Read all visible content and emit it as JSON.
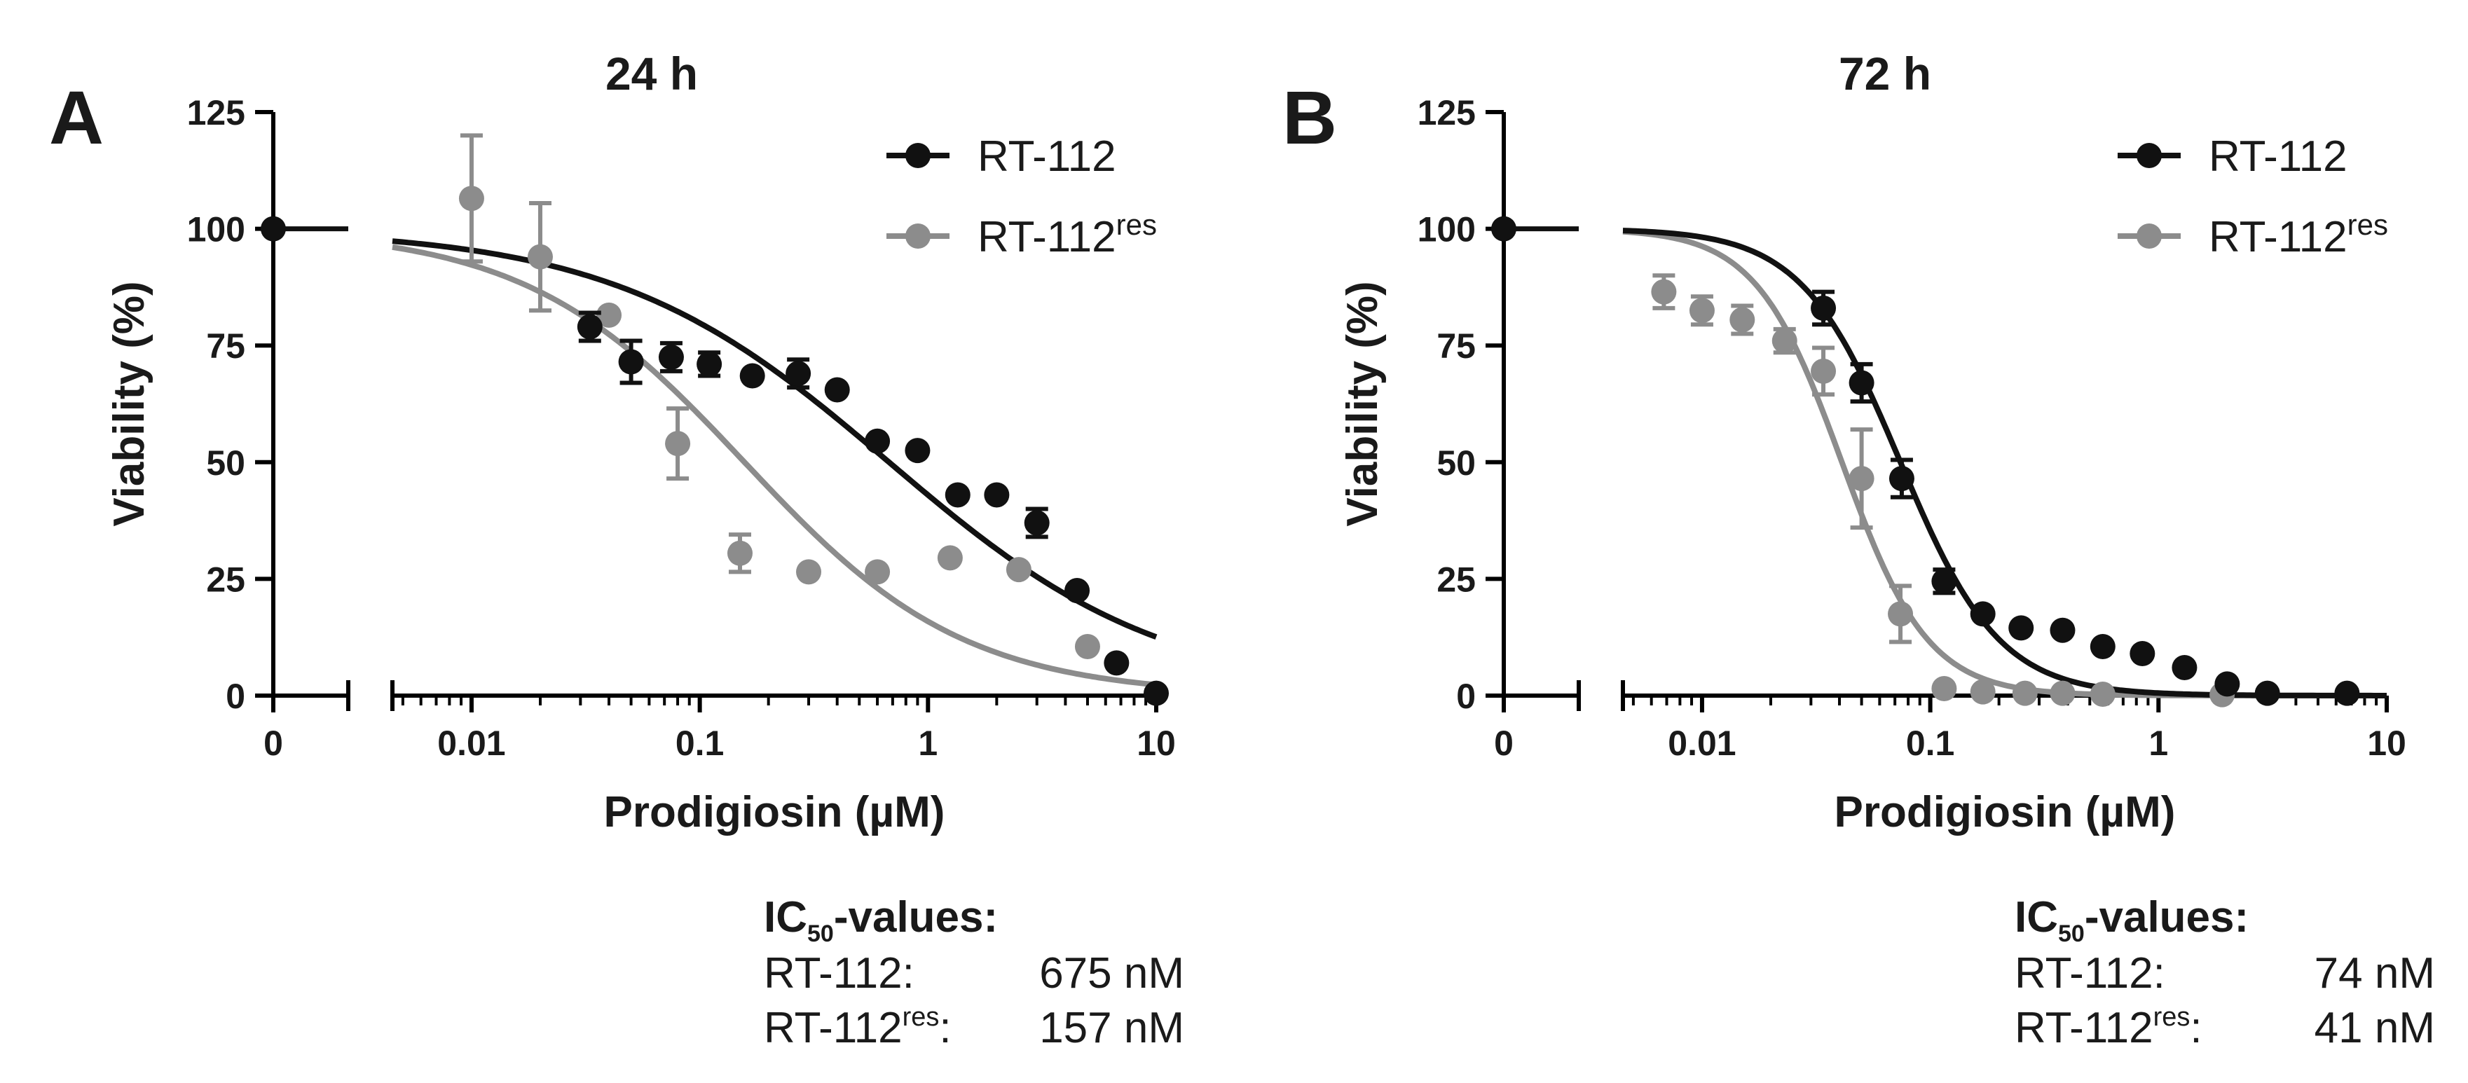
{
  "figure": {
    "x_axis_label": "Prodigiosin (µM)",
    "y_axis_label": "Viability (%)"
  },
  "chart_data": [
    {
      "type": "scatter",
      "panel_letter": "A",
      "title": "24 h",
      "xlabel": "Prodigiosin (µM)",
      "ylabel": "Viability (%)",
      "xscale": "log",
      "xlim": [
        0.0045,
        10
      ],
      "ylim": [
        0,
        125
      ],
      "x_ticks": [
        "0",
        "0.01",
        "0.1",
        "1",
        "10"
      ],
      "y_ticks": [
        "0",
        "25",
        "50",
        "75",
        "100",
        "125"
      ],
      "zero_dose": {
        "x_label": "0",
        "viability": 100
      },
      "legend": {
        "position": "top-right",
        "entries": [
          {
            "name": "RT-112",
            "sup": "",
            "color": "#111111"
          },
          {
            "name": "RT-112",
            "sup": "res",
            "color": "#8c8c8c"
          }
        ]
      },
      "series": [
        {
          "name": "RT-112",
          "color": "#111111",
          "ic50_uM": 0.675,
          "hill": 0.72,
          "points": [
            [
              0.033,
              79,
              3
            ],
            [
              0.05,
              71.5,
              4.5
            ],
            [
              0.075,
              72.5,
              3
            ],
            [
              0.11,
              71,
              2.5
            ],
            [
              0.17,
              68.5,
              0
            ],
            [
              0.27,
              69,
              3
            ],
            [
              0.4,
              65.5,
              0
            ],
            [
              0.6,
              54.5,
              0
            ],
            [
              0.9,
              52.5,
              0
            ],
            [
              1.35,
              43,
              0
            ],
            [
              2.0,
              43,
              0
            ],
            [
              3.0,
              37,
              3
            ],
            [
              4.5,
              22.5,
              0
            ],
            [
              6.7,
              7,
              0
            ],
            [
              10,
              0.5,
              0
            ]
          ]
        },
        {
          "name": "RT-112res",
          "color": "#8c8c8c",
          "ic50_uM": 0.157,
          "hill": 0.9,
          "points": [
            [
              0.01,
              106.5,
              13.5
            ],
            [
              0.02,
              94,
              11.5
            ],
            [
              0.04,
              81.5,
              0
            ],
            [
              0.08,
              54,
              7.5
            ],
            [
              0.15,
              30.5,
              4
            ],
            [
              0.3,
              26.5,
              0
            ],
            [
              0.6,
              26.5,
              0
            ],
            [
              1.25,
              29.5,
              0
            ],
            [
              2.5,
              27,
              0
            ],
            [
              5.0,
              10.5,
              0
            ]
          ]
        }
      ],
      "ic50_table": {
        "heading": "IC",
        "heading_sub": "50",
        "heading_suffix": "-values:",
        "rows": [
          {
            "name": "RT-112",
            "sup": "",
            "suffix": ":",
            "value": "675 nM"
          },
          {
            "name": "RT-112",
            "sup": "res",
            "suffix": ":",
            "value": "157 nM"
          }
        ]
      }
    },
    {
      "type": "scatter",
      "panel_letter": "B",
      "title": "72 h",
      "xlabel": "Prodigiosin (µM)",
      "ylabel": "Viability (%)",
      "xscale": "log",
      "xlim": [
        0.0045,
        10
      ],
      "ylim": [
        0,
        125
      ],
      "x_ticks": [
        "0",
        "0.01",
        "0.1",
        "1",
        "10"
      ],
      "y_ticks": [
        "0",
        "25",
        "50",
        "75",
        "100",
        "125"
      ],
      "zero_dose": {
        "x_label": "0",
        "viability": 100
      },
      "legend": {
        "position": "top-right",
        "entries": [
          {
            "name": "RT-112",
            "sup": "",
            "color": "#111111"
          },
          {
            "name": "RT-112",
            "sup": "res",
            "color": "#8c8c8c"
          }
        ]
      },
      "series": [
        {
          "name": "RT-112",
          "color": "#111111",
          "ic50_uM": 0.074,
          "hill": 2.0,
          "points": [
            [
              0.034,
              83,
              3.5
            ],
            [
              0.05,
              67,
              4
            ],
            [
              0.075,
              46.5,
              4
            ],
            [
              0.115,
              24.5,
              2.5
            ],
            [
              0.17,
              17.5,
              0
            ],
            [
              0.25,
              14.5,
              0
            ],
            [
              0.38,
              14,
              0
            ],
            [
              0.57,
              10.5,
              0
            ],
            [
              0.85,
              9,
              0
            ],
            [
              1.3,
              6,
              0
            ],
            [
              2.0,
              2.5,
              0
            ],
            [
              3.0,
              0.5,
              0
            ],
            [
              6.7,
              0.5,
              0
            ]
          ]
        },
        {
          "name": "RT-112res",
          "color": "#8c8c8c",
          "ic50_uM": 0.041,
          "hill": 2.3,
          "points": [
            [
              0.0068,
              86.5,
              3.5
            ],
            [
              0.01,
              82.5,
              3
            ],
            [
              0.015,
              80.5,
              3
            ],
            [
              0.023,
              76,
              2.5
            ],
            [
              0.034,
              69.5,
              5
            ],
            [
              0.05,
              46.5,
              10.5
            ],
            [
              0.074,
              17.5,
              6
            ],
            [
              0.115,
              1.5,
              0
            ],
            [
              0.17,
              0.8,
              0
            ],
            [
              0.26,
              0.5,
              0
            ],
            [
              0.38,
              0.5,
              0
            ],
            [
              0.57,
              0.3,
              0
            ],
            [
              1.9,
              0.2,
              0
            ]
          ]
        }
      ],
      "ic50_table": {
        "heading": "IC",
        "heading_sub": "50",
        "heading_suffix": "-values:",
        "rows": [
          {
            "name": "RT-112",
            "sup": "",
            "suffix": ":",
            "value": "74 nM"
          },
          {
            "name": "RT-112",
            "sup": "res",
            "suffix": ":",
            "value": "41 nM"
          }
        ]
      }
    }
  ]
}
